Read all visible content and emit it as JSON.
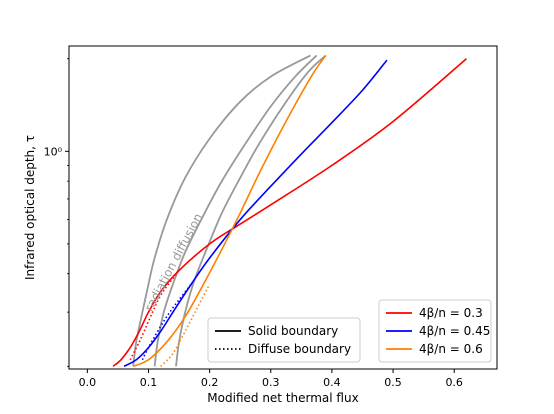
{
  "chart_data": {
    "type": "line",
    "xlabel": "Modified net thermal flux",
    "ylabel": "Infrared optical depth, τ",
    "xlim": [
      -0.03,
      0.67
    ],
    "ylim": [
      0.196,
      2.2
    ],
    "yscale": "log",
    "x_ticks": [
      0.0,
      0.1,
      0.2,
      0.3,
      0.4,
      0.5,
      0.6
    ],
    "x_tick_labels": [
      "0.0",
      "0.1",
      "0.2",
      "0.3",
      "0.4",
      "0.5",
      "0.6"
    ],
    "y_ticks": [
      1.0
    ],
    "y_tick_labels": [
      "10⁰"
    ],
    "grid": false,
    "annotation": {
      "text": "radiation diffusion",
      "color": "#999999"
    },
    "legends": [
      {
        "location": "lower-center",
        "entries": [
          {
            "label": "Solid boundary",
            "style": "solid",
            "color": "#000000"
          },
          {
            "label": "Diffuse boundary",
            "style": "dotted",
            "color": "#000000"
          }
        ]
      },
      {
        "location": "lower-right",
        "entries": [
          {
            "label": "4β/n = 0.3",
            "color": "#ff0000"
          },
          {
            "label": "4β/n = 0.45",
            "color": "#0000ff"
          },
          {
            "label": "4β/n = 0.6",
            "color": "#ff8000"
          }
        ]
      }
    ],
    "series": [
      {
        "color": "#ff0000",
        "style": "solid",
        "x": [
          0.042,
          0.055,
          0.07,
          0.085,
          0.1,
          0.12,
          0.15,
          0.2,
          0.25,
          0.3,
          0.4,
          0.5,
          0.62
        ],
        "y": [
          0.2,
          0.21,
          0.23,
          0.26,
          0.3,
          0.35,
          0.41,
          0.5,
          0.58,
          0.67,
          0.9,
          1.25,
          2.0
        ]
      },
      {
        "color": "#ff0000",
        "style": "dotted",
        "x": [
          0.07,
          0.085,
          0.1,
          0.12,
          0.15
        ],
        "y": [
          0.21,
          0.24,
          0.28,
          0.34,
          0.41
        ]
      },
      {
        "color": "#0000ff",
        "style": "solid",
        "x": [
          0.06,
          0.08,
          0.1,
          0.12,
          0.14,
          0.17,
          0.2,
          0.25,
          0.3,
          0.35,
          0.4,
          0.45,
          0.49
        ],
        "y": [
          0.2,
          0.21,
          0.23,
          0.26,
          0.3,
          0.37,
          0.45,
          0.6,
          0.77,
          0.98,
          1.24,
          1.58,
          1.98
        ]
      },
      {
        "color": "#0000ff",
        "style": "dotted",
        "x": [
          0.09,
          0.1,
          0.12,
          0.14,
          0.17
        ],
        "y": [
          0.21,
          0.23,
          0.27,
          0.31,
          0.37
        ]
      },
      {
        "color": "#ff8000",
        "style": "solid",
        "x": [
          0.075,
          0.1,
          0.13,
          0.16,
          0.19,
          0.22,
          0.25,
          0.28,
          0.31,
          0.34,
          0.37,
          0.39
        ],
        "y": [
          0.2,
          0.21,
          0.24,
          0.29,
          0.37,
          0.48,
          0.63,
          0.84,
          1.1,
          1.42,
          1.8,
          2.05
        ]
      },
      {
        "color": "#ff8000",
        "style": "dotted",
        "x": [
          0.12,
          0.14,
          0.16,
          0.18,
          0.2
        ],
        "y": [
          0.2,
          0.22,
          0.26,
          0.31,
          0.37
        ]
      },
      {
        "color": "#999999",
        "style": "solid",
        "x": [
          0.075,
          0.08,
          0.09,
          0.1,
          0.11,
          0.13,
          0.16,
          0.2,
          0.25,
          0.3,
          0.365
        ],
        "y": [
          0.2,
          0.24,
          0.3,
          0.37,
          0.45,
          0.6,
          0.82,
          1.1,
          1.45,
          1.75,
          2.05
        ]
      },
      {
        "color": "#999999",
        "style": "solid",
        "x": [
          0.11,
          0.115,
          0.125,
          0.14,
          0.16,
          0.19,
          0.22,
          0.26,
          0.3,
          0.34,
          0.375
        ],
        "y": [
          0.2,
          0.24,
          0.3,
          0.37,
          0.47,
          0.62,
          0.8,
          1.07,
          1.4,
          1.75,
          2.05
        ]
      },
      {
        "color": "#999999",
        "style": "solid",
        "x": [
          0.145,
          0.15,
          0.16,
          0.175,
          0.195,
          0.22,
          0.25,
          0.28,
          0.32,
          0.36,
          0.39
        ],
        "y": [
          0.2,
          0.24,
          0.3,
          0.38,
          0.48,
          0.63,
          0.82,
          1.05,
          1.4,
          1.8,
          2.05
        ]
      }
    ]
  }
}
